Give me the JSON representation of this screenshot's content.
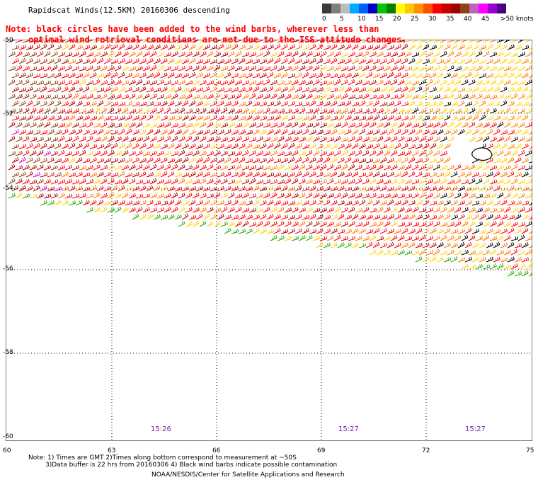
{
  "title": "Rapidscat Winds(12.5KM) 20160306 descending",
  "note": {
    "line1": "Note: black circles have been added to the wind barbs, wherever less than",
    "line2": "optimal wind retrieval conditions are met due to the ISS attitude changes."
  },
  "legend": {
    "colors": [
      "#3a3a3a",
      "#7f7f7f",
      "#bdbdbd",
      "#00aaff",
      "#0060ff",
      "#0000c0",
      "#00c800",
      "#008000",
      "#ffff00",
      "#ffc800",
      "#ff9000",
      "#ff5000",
      "#ff0000",
      "#c80000",
      "#a00000",
      "#8b4513",
      "#c060c0",
      "#ff00ff",
      "#9900cc",
      "#4b0082"
    ],
    "ticks": [
      "0",
      "5",
      "10",
      "15",
      "20",
      "25",
      "30",
      "35",
      "40",
      "45",
      ">50 knots"
    ]
  },
  "axes": {
    "lat_labels": [
      "-50",
      "-52",
      "-54",
      "-56",
      "-58",
      "-60"
    ],
    "lon_labels": [
      "60",
      "63",
      "66",
      "69",
      "72",
      "75"
    ],
    "lat_range": [
      -60,
      -50
    ],
    "lon_range": [
      60,
      75
    ]
  },
  "times": [
    "15:26",
    "15:27",
    "15:27"
  ],
  "footer": {
    "line1": "Note: 1) Times are GMT 2)Times along bottom correspond to measurement at ~50S",
    "line2": "3)Data buffer is 22 hrs from 20160306 4) Black wind barbs indicate possible contamination",
    "line3": "NOAA/NESDIS/Center for Satellite Applications and Research"
  },
  "map_content": {
    "type": "wind-barb-map",
    "swath": "diagonal swath from upper-left to lower-right",
    "dominant_speeds": "25-40 knots",
    "land_feature": "Heard Island near 73.5E, -53S"
  }
}
